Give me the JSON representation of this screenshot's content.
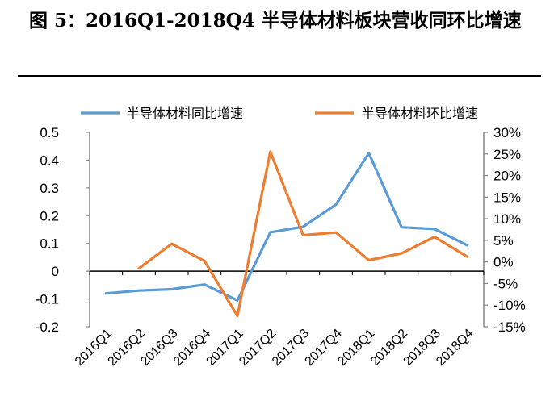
{
  "header": {
    "title": "图 5：2016Q1-2018Q4 半导体材料板块营收同环比增速"
  },
  "chart_data": {
    "type": "line",
    "categories": [
      "2016Q1",
      "2016Q2",
      "2016Q3",
      "2016Q4",
      "2017Q1",
      "2017Q2",
      "2017Q3",
      "2017Q4",
      "2018Q1",
      "2018Q2",
      "2018Q3",
      "2018Q4"
    ],
    "series": [
      {
        "name": "半导体材料同比增速",
        "axis": "left",
        "color": "#5b9bd5",
        "values": [
          -0.08,
          -0.07,
          -0.065,
          -0.048,
          -0.105,
          0.14,
          0.16,
          0.24,
          0.425,
          0.158,
          0.152,
          0.093
        ]
      },
      {
        "name": "半导体材料环比增速",
        "axis": "right",
        "color": "#ed7d31",
        "values": [
          null,
          -1.5,
          4.2,
          0.2,
          -12.5,
          25.5,
          6.2,
          6.8,
          0.4,
          2.0,
          5.8,
          1.2
        ]
      }
    ],
    "y_left": {
      "ylim": [
        -0.2,
        0.5
      ],
      "ticks": [
        0.5,
        0.4,
        0.3,
        0.2,
        0.1,
        0,
        -0.1,
        -0.2
      ],
      "tick_labels": [
        "0.5",
        "0.4",
        "0.3",
        "0.2",
        "0.1",
        "0",
        "-0.1",
        "-0.2"
      ]
    },
    "y_right": {
      "ylim": [
        -15,
        30
      ],
      "ticks": [
        30,
        25,
        20,
        15,
        10,
        5,
        0,
        -5,
        -10,
        -15
      ],
      "tick_labels": [
        "30%",
        "25%",
        "20%",
        "15%",
        "10%",
        "5%",
        "0%",
        "-5%",
        "-10%",
        "-15%"
      ]
    },
    "legend_position": "top",
    "grid": false
  }
}
